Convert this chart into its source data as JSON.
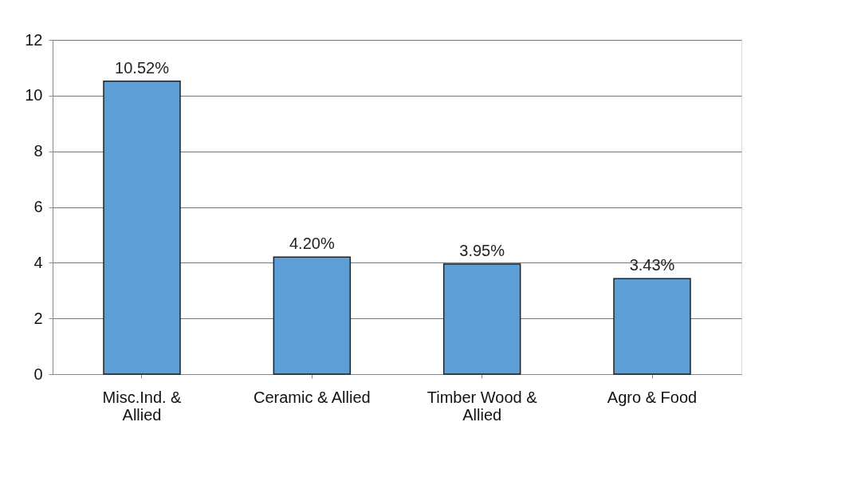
{
  "chart_data": {
    "type": "bar",
    "categories": [
      "Misc.Ind. & Allied",
      "Ceramic & Allied",
      "Timber Wood & Allied",
      "Agro & Food"
    ],
    "values": [
      10.52,
      4.2,
      3.95,
      3.43
    ],
    "value_labels": [
      "10.52%",
      "4.20%",
      "3.95%",
      "3.43%"
    ],
    "color": "#5b9fd6",
    "ylim": [
      0,
      12
    ],
    "yticks": [
      0,
      2,
      4,
      6,
      8,
      10,
      12
    ],
    "grid": "y"
  }
}
